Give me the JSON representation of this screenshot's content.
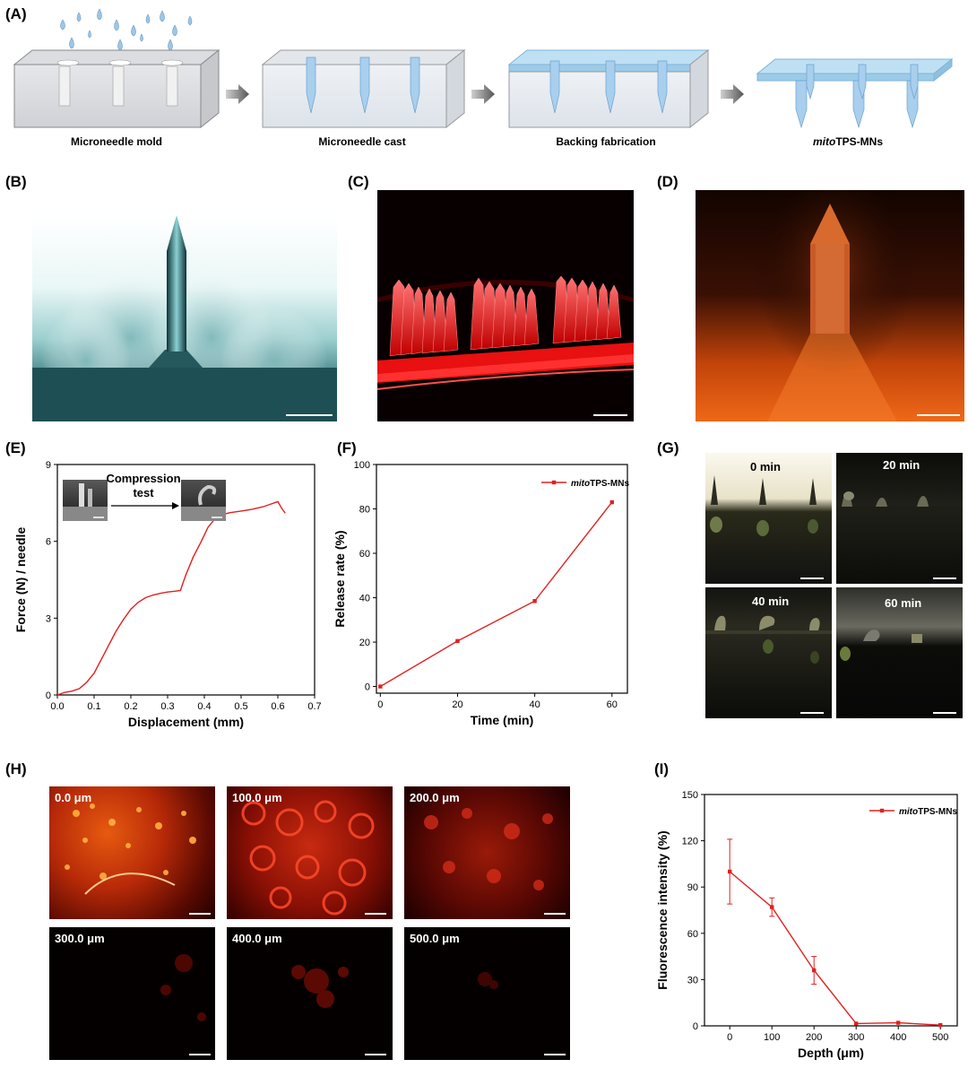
{
  "panels": {
    "A": "(A)",
    "B": "(B)",
    "C": "(C)",
    "D": "(D)",
    "E": "(E)",
    "F": "(F)",
    "G": "(G)",
    "H": "(H)",
    "I": "(I)"
  },
  "schematic": {
    "steps": [
      "Microneedle mold",
      "Microneedle cast",
      "Backing fabrication"
    ],
    "last_step_italic": "mito",
    "last_step_rest": "TPS-MNs"
  },
  "compression": {
    "inset_line1": "Compression",
    "inset_line2": "test"
  },
  "g_times": [
    "0 min",
    "20 min",
    "40 min",
    "60 min"
  ],
  "h_depths": [
    "0.0 μm",
    "100.0 μm",
    "200.0 μm",
    "300.0 μm",
    "400.0 μm",
    "500.0 μm"
  ],
  "legend_italic": "mito",
  "legend_rest": "TPS-MNs",
  "colors": {
    "series": "#e02020",
    "axis": "#000000"
  },
  "chart_data": [
    {
      "panel": "E",
      "type": "line",
      "xlabel": "Displacement (mm)",
      "ylabel": "Force (N) / needle",
      "xlim": [
        0.0,
        0.7
      ],
      "ylim": [
        0,
        9
      ],
      "xticks": [
        "0.0",
        "0.1",
        "0.2",
        "0.3",
        "0.4",
        "0.5",
        "0.6",
        "0.7"
      ],
      "yticks": [
        "0",
        "3",
        "6",
        "9"
      ],
      "x": [
        0.0,
        0.02,
        0.04,
        0.06,
        0.08,
        0.1,
        0.12,
        0.14,
        0.16,
        0.18,
        0.2,
        0.22,
        0.24,
        0.26,
        0.28,
        0.3,
        0.32,
        0.335,
        0.34,
        0.35,
        0.37,
        0.39,
        0.41,
        0.43,
        0.45,
        0.47,
        0.5,
        0.53,
        0.56,
        0.58,
        0.6,
        0.61,
        0.62
      ],
      "y": [
        0.0,
        0.1,
        0.15,
        0.25,
        0.5,
        0.85,
        1.4,
        1.95,
        2.5,
        2.95,
        3.35,
        3.62,
        3.8,
        3.9,
        3.97,
        4.02,
        4.05,
        4.08,
        4.3,
        4.7,
        5.4,
        5.95,
        6.55,
        6.9,
        7.05,
        7.12,
        7.18,
        7.25,
        7.35,
        7.45,
        7.55,
        7.3,
        7.1
      ]
    },
    {
      "panel": "F",
      "type": "line",
      "xlabel": "Time (min)",
      "ylabel": "Release rate (%)",
      "xlim": [
        -1,
        64
      ],
      "ylim": [
        -3,
        100
      ],
      "xticks": [
        "0",
        "20",
        "40",
        "60"
      ],
      "yticks": [
        "0",
        "20",
        "40",
        "60",
        "80",
        "100"
      ],
      "series": [
        {
          "name": "mitoTPS-MNs",
          "x": [
            0,
            20,
            40,
            60
          ],
          "values": [
            0,
            20.5,
            38.5,
            83
          ]
        }
      ]
    },
    {
      "panel": "I",
      "type": "line",
      "xlabel": "Depth (μm)",
      "ylabel": "Fluorescence intensity (%)",
      "xlim": [
        -60,
        540
      ],
      "ylim": [
        0,
        150
      ],
      "xticks": [
        "0",
        "100",
        "200",
        "300",
        "400",
        "500"
      ],
      "yticks": [
        "0",
        "30",
        "60",
        "90",
        "120",
        "150"
      ],
      "series": [
        {
          "name": "mitoTPS-MNs",
          "x": [
            0,
            100,
            200,
            300,
            400,
            500
          ],
          "values": [
            100,
            77,
            36,
            1.5,
            2,
            0.5
          ],
          "errors": [
            21,
            6,
            9,
            0,
            0,
            0
          ]
        }
      ]
    }
  ]
}
